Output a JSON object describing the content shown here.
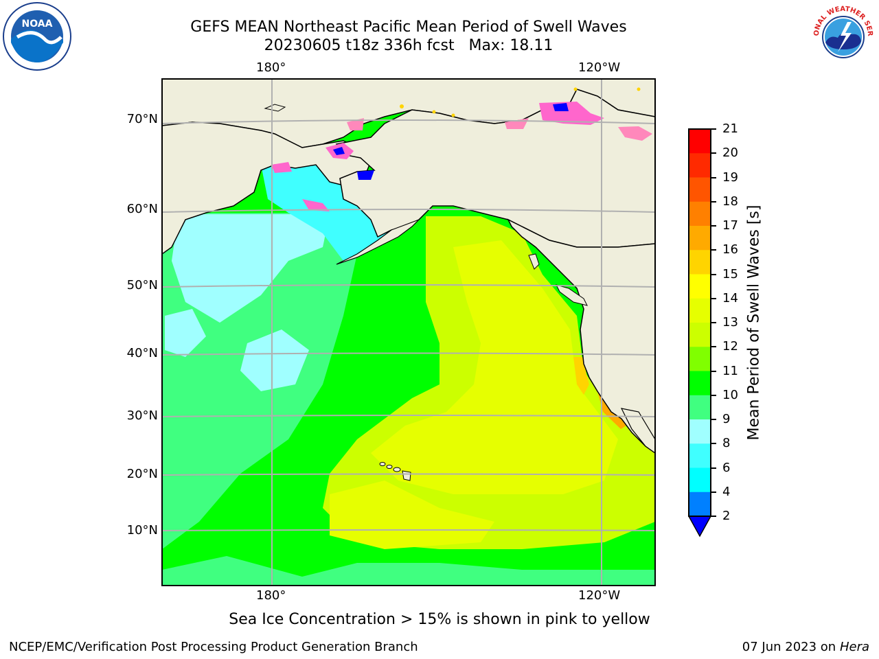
{
  "title_line1": "GEFS MEAN Northeast Pacific Mean Period of Swell Waves",
  "title_line2": "20230605 t18z 336h fcst   Max: 18.11",
  "map": {
    "lat_labels": [
      "70°N",
      "60°N",
      "50°N",
      "40°N",
      "30°N",
      "20°N",
      "10°N"
    ],
    "lon_top": [
      "180°",
      "120°W"
    ],
    "lon_bottom": [
      "180°",
      "120°W"
    ],
    "colors": {
      "land": "#efeedc",
      "grid": "#b0b0b0",
      "coast": "#000000"
    }
  },
  "colorbar": {
    "label": "Mean Period of Swell Waves [s]",
    "ticks": [
      "21",
      "20",
      "19",
      "18",
      "17",
      "16",
      "15",
      "14",
      "13",
      "12",
      "11",
      "10",
      "9",
      "8",
      "6",
      "4",
      "2"
    ],
    "colors": [
      "#ff0000",
      "#ff2a00",
      "#ff5500",
      "#ff8000",
      "#ffaa00",
      "#ffd400",
      "#ffff00",
      "#e6ff00",
      "#ccff00",
      "#80ff00",
      "#00ff00",
      "#40ff80",
      "#a0ffff",
      "#40ffff",
      "#00ffff",
      "#0080ff",
      "#0000ff"
    ]
  },
  "caption": "Sea Ice Concentration > 15% is shown in pink to yellow",
  "credit_left": "NCEP/EMC/Verification Post Processing Product Generation Branch",
  "credit_right_date": "07 Jun 2023 on",
  "credit_right_host": "Hera",
  "logos": {
    "noaa": "NOAA",
    "nws": "NATIONAL WEATHER SERVICE"
  }
}
